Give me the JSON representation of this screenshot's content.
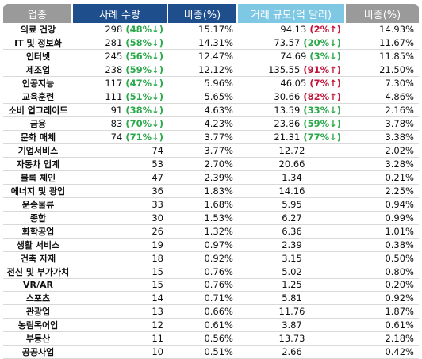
{
  "headers": [
    "업종",
    "사례 수량",
    "비중(%)",
    "거래 규모(억 달러)",
    "비중(%)"
  ],
  "rows": [
    {
      "category": "의료 건강",
      "count": "298",
      "count_change": "(48%↓)",
      "count_dir": "down",
      "share": "15.17%",
      "volume": "94.13",
      "volume_change": "(2%↑)",
      "volume_dir": "up",
      "volume_share": "14.93%"
    },
    {
      "category": "IT 및 정보화",
      "count": "281",
      "count_change": "(58%↓)",
      "count_dir": "down",
      "share": "14.31%",
      "volume": "73.57",
      "volume_change": "(20%↓)",
      "volume_dir": "down",
      "volume_share": "11.67%"
    },
    {
      "category": "인터넷",
      "count": "245",
      "count_change": "(56%↓)",
      "count_dir": "down",
      "share": "12.47%",
      "volume": "74.69",
      "volume_change": "(3%↓)",
      "volume_dir": "down",
      "volume_share": "11.85%"
    },
    {
      "category": "제조업",
      "count": "238",
      "count_change": "(59%↓)",
      "count_dir": "down",
      "share": "12.12%",
      "volume": "135.55",
      "volume_change": "(91%↑)",
      "volume_dir": "up",
      "volume_share": "21.50%"
    },
    {
      "category": "인공지능",
      "count": "117",
      "count_change": "(47%↓)",
      "count_dir": "down",
      "share": "5.96%",
      "volume": "46.05",
      "volume_change": "(7%↑)",
      "volume_dir": "up",
      "volume_share": "7.30%"
    },
    {
      "category": "교육훈련",
      "count": "111",
      "count_change": "(51%↓)",
      "count_dir": "down",
      "share": "5.65%",
      "volume": "30.66",
      "volume_change": "(82%↑)",
      "volume_dir": "up",
      "volume_share": "4.86%"
    },
    {
      "category": "소비 업그레이드",
      "count": "91",
      "count_change": "(38%↓)",
      "count_dir": "down",
      "share": "4.63%",
      "volume": "13.59",
      "volume_change": "(33%↓)",
      "volume_dir": "down",
      "volume_share": "2.16%"
    },
    {
      "category": "금융",
      "count": "83",
      "count_change": "(70%↓)",
      "count_dir": "down",
      "share": "4.23%",
      "volume": "23.86",
      "volume_change": "(59%↓)",
      "volume_dir": "down",
      "volume_share": "3.78%"
    },
    {
      "category": "문화 매체",
      "count": "74",
      "count_change": "(71%↓)",
      "count_dir": "down",
      "share": "3.77%",
      "volume": "21.31",
      "volume_change": "(77%↓)",
      "volume_dir": "down",
      "volume_share": "3.38%"
    },
    {
      "category": "기업서비스",
      "count": "74",
      "count_change": "",
      "count_dir": "",
      "share": "3.77%",
      "volume": "12.72",
      "volume_change": "",
      "volume_dir": "",
      "volume_share": "2.02%"
    },
    {
      "category": "자동차 업계",
      "count": "53",
      "count_change": "",
      "count_dir": "",
      "share": "2.70%",
      "volume": "20.66",
      "volume_change": "",
      "volume_dir": "",
      "volume_share": "3.28%"
    },
    {
      "category": "블록 체인",
      "count": "47",
      "count_change": "",
      "count_dir": "",
      "share": "2.39%",
      "volume": "1.34",
      "volume_change": "",
      "volume_dir": "",
      "volume_share": "0.21%"
    },
    {
      "category": "에너지 및 광업",
      "count": "36",
      "count_change": "",
      "count_dir": "",
      "share": "1.83%",
      "volume": "14.16",
      "volume_change": "",
      "volume_dir": "",
      "volume_share": "2.25%"
    },
    {
      "category": "운송물류",
      "count": "33",
      "count_change": "",
      "count_dir": "",
      "share": "1.68%",
      "volume": "5.95",
      "volume_change": "",
      "volume_dir": "",
      "volume_share": "0.94%"
    },
    {
      "category": "종합",
      "count": "30",
      "count_change": "",
      "count_dir": "",
      "share": "1.53%",
      "volume": "6.27",
      "volume_change": "",
      "volume_dir": "",
      "volume_share": "0.99%"
    },
    {
      "category": "화학공업",
      "count": "26",
      "count_change": "",
      "count_dir": "",
      "share": "1.32%",
      "volume": "6.36",
      "volume_change": "",
      "volume_dir": "",
      "volume_share": "1.01%"
    },
    {
      "category": "생활 서비스",
      "count": "19",
      "count_change": "",
      "count_dir": "",
      "share": "0.97%",
      "volume": "2.39",
      "volume_change": "",
      "volume_dir": "",
      "volume_share": "0.38%"
    },
    {
      "category": "건축 자재",
      "count": "18",
      "count_change": "",
      "count_dir": "",
      "share": "0.92%",
      "volume": "3.15",
      "volume_change": "",
      "volume_dir": "",
      "volume_share": "0.50%"
    },
    {
      "category": "전신 및 부가가치",
      "count": "15",
      "count_change": "",
      "count_dir": "",
      "share": "0.76%",
      "volume": "5.02",
      "volume_change": "",
      "volume_dir": "",
      "volume_share": "0.80%"
    },
    {
      "category": "VR/AR",
      "count": "15",
      "count_change": "",
      "count_dir": "",
      "share": "0.76%",
      "volume": "1.25",
      "volume_change": "",
      "volume_dir": "",
      "volume_share": "0.20%"
    },
    {
      "category": "스포츠",
      "count": "14",
      "count_change": "",
      "count_dir": "",
      "share": "0.71%",
      "volume": "5.81",
      "volume_change": "",
      "volume_dir": "",
      "volume_share": "0.92%"
    },
    {
      "category": "관광업",
      "count": "13",
      "count_change": "",
      "count_dir": "",
      "share": "0.66%",
      "volume": "11.76",
      "volume_change": "",
      "volume_dir": "",
      "volume_share": "1.87%"
    },
    {
      "category": "농림목어업",
      "count": "12",
      "count_change": "",
      "count_dir": "",
      "share": "0.61%",
      "volume": "3.87",
      "volume_change": "",
      "volume_dir": "",
      "volume_share": "0.61%"
    },
    {
      "category": "부동산",
      "count": "11",
      "count_change": "",
      "count_dir": "",
      "share": "0.56%",
      "volume": "13.73",
      "volume_change": "",
      "volume_dir": "",
      "volume_share": "2.18%"
    },
    {
      "category": "공공사업",
      "count": "10",
      "count_change": "",
      "count_dir": "",
      "share": "0.51%",
      "volume": "2.66",
      "volume_change": "",
      "volume_dir": "",
      "volume_share": "0.42%"
    }
  ],
  "colors": {
    "header_gray": "#9a9a9a",
    "header_navy": "#1f4e8c",
    "header_light_blue": "#7ec8e3",
    "change_down": "#2aa84a",
    "change_up": "#c0163c"
  }
}
